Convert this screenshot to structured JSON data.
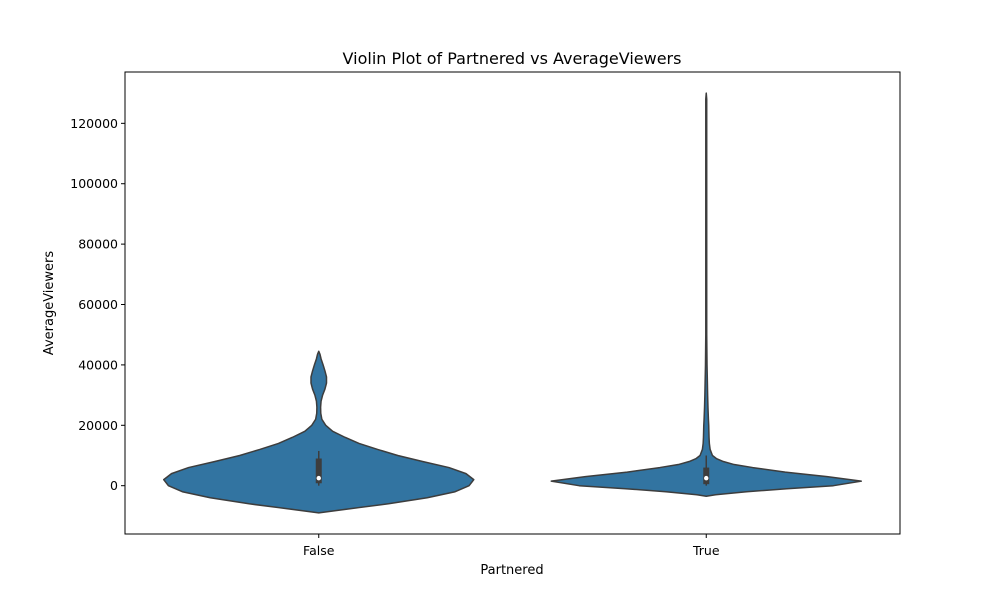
{
  "chart_data": {
    "type": "violin",
    "title": "Violin Plot of Partnered vs AverageViewers",
    "xlabel": "Partnered",
    "ylabel": "AverageViewers",
    "categories": [
      "False",
      "True"
    ],
    "ylim": [
      -16000,
      137000
    ],
    "yticks": [
      0,
      20000,
      40000,
      60000,
      80000,
      100000,
      120000
    ],
    "ytick_labels": [
      "0",
      "20000",
      "40000",
      "60000",
      "80000",
      "100000",
      "120000"
    ],
    "fill_color": "#3274a1",
    "edge_color": "#3d3d3d",
    "box_color": "#3d3d3d",
    "median_color": "#ffffff",
    "grid": false,
    "violins": [
      {
        "category": "False",
        "kde_min": -9000,
        "kde_max": 44500,
        "box": {
          "q1": 800,
          "median": 2500,
          "q3": 9000,
          "whisker_low": 0,
          "whisker_high": 11500
        },
        "profile": [
          [
            -9000,
            0.0
          ],
          [
            -7500,
            0.22
          ],
          [
            -6000,
            0.45
          ],
          [
            -4000,
            0.7
          ],
          [
            -2000,
            0.88
          ],
          [
            0,
            0.97
          ],
          [
            2000,
            1.0
          ],
          [
            4000,
            0.95
          ],
          [
            6000,
            0.84
          ],
          [
            8000,
            0.67
          ],
          [
            10000,
            0.51
          ],
          [
            12000,
            0.38
          ],
          [
            14000,
            0.26
          ],
          [
            16000,
            0.17
          ],
          [
            18000,
            0.09
          ],
          [
            20000,
            0.045
          ],
          [
            22000,
            0.02
          ],
          [
            24000,
            0.013
          ],
          [
            26000,
            0.012
          ],
          [
            28000,
            0.015
          ],
          [
            30000,
            0.025
          ],
          [
            32000,
            0.04
          ],
          [
            34000,
            0.05
          ],
          [
            36000,
            0.05
          ],
          [
            38000,
            0.04
          ],
          [
            40000,
            0.028
          ],
          [
            42000,
            0.015
          ],
          [
            43500,
            0.008
          ],
          [
            44500,
            0.0
          ]
        ]
      },
      {
        "category": "True",
        "kde_min": -3500,
        "kde_max": 130000,
        "box": {
          "q1": 500,
          "median": 2500,
          "q3": 6000,
          "whisker_low": 0,
          "whisker_high": 10000
        },
        "profile": [
          [
            -3500,
            0.0
          ],
          [
            -3000,
            0.06
          ],
          [
            -2000,
            0.26
          ],
          [
            -1000,
            0.52
          ],
          [
            0,
            0.82
          ],
          [
            1500,
            1.0
          ],
          [
            3000,
            0.78
          ],
          [
            4500,
            0.51
          ],
          [
            6000,
            0.3
          ],
          [
            7000,
            0.18
          ],
          [
            8000,
            0.11
          ],
          [
            9000,
            0.065
          ],
          [
            10000,
            0.04
          ],
          [
            12000,
            0.025
          ],
          [
            14000,
            0.02
          ],
          [
            16000,
            0.018
          ],
          [
            18000,
            0.017
          ],
          [
            20000,
            0.016
          ],
          [
            22000,
            0.014
          ],
          [
            26000,
            0.011
          ],
          [
            30000,
            0.009
          ],
          [
            35000,
            0.007
          ],
          [
            40000,
            0.005
          ],
          [
            45000,
            0.004
          ],
          [
            50000,
            0.003
          ],
          [
            70000,
            0.003
          ],
          [
            100000,
            0.003
          ],
          [
            128000,
            0.003
          ],
          [
            130000,
            0.0
          ]
        ]
      }
    ]
  }
}
